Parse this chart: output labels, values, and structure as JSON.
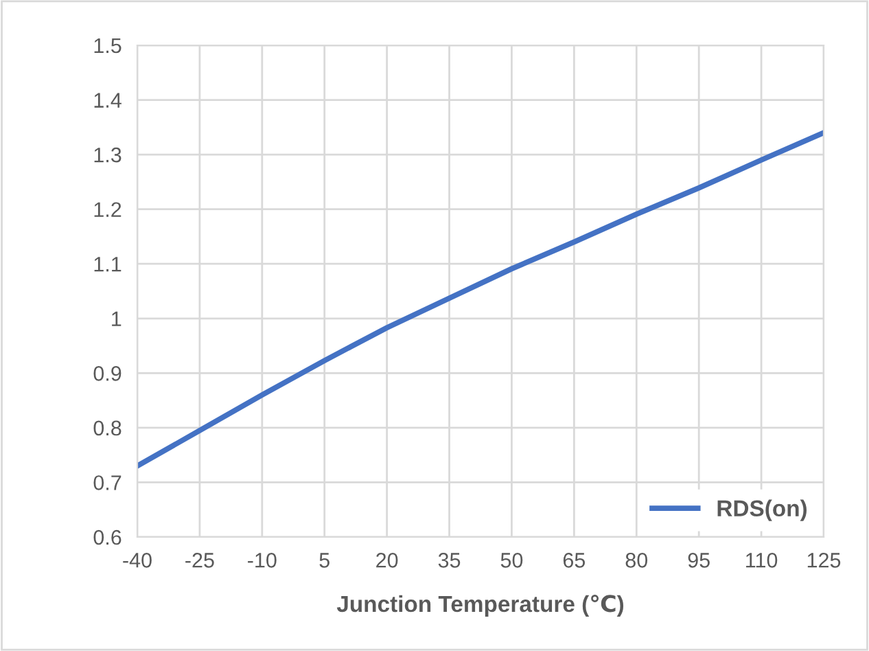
{
  "chart_data": {
    "type": "line",
    "xlabel": "Junction Temperature (℃)",
    "x": [
      -40,
      -25,
      -10,
      5,
      20,
      35,
      50,
      65,
      80,
      95,
      110,
      125
    ],
    "series": [
      {
        "name": "RDS(on)",
        "color": "#4472c4",
        "values": [
          0.73,
          0.795,
          0.86,
          0.923,
          0.983,
          1.037,
          1.091,
          1.14,
          1.191,
          1.239,
          1.29,
          1.34
        ]
      }
    ],
    "xlim": [
      -40,
      125
    ],
    "xticks": [
      -40,
      -25,
      -10,
      5,
      20,
      35,
      50,
      65,
      80,
      95,
      110,
      125
    ],
    "ylim": [
      0.6,
      1.5
    ],
    "yticks": [
      {
        "value": 0.6,
        "label": "0.6"
      },
      {
        "value": 0.7,
        "label": "0.7"
      },
      {
        "value": 0.8,
        "label": "0.8"
      },
      {
        "value": 0.9,
        "label": "0.9"
      },
      1,
      {
        "value": 1.1,
        "label": "1.1"
      },
      {
        "value": 1.2,
        "label": "1.2"
      },
      {
        "value": 1.3,
        "label": "1.3"
      },
      {
        "value": 1.4,
        "label": "1.4"
      },
      {
        "value": 1.5,
        "label": "1.5"
      }
    ],
    "grid": true,
    "legend": "bottom right"
  }
}
